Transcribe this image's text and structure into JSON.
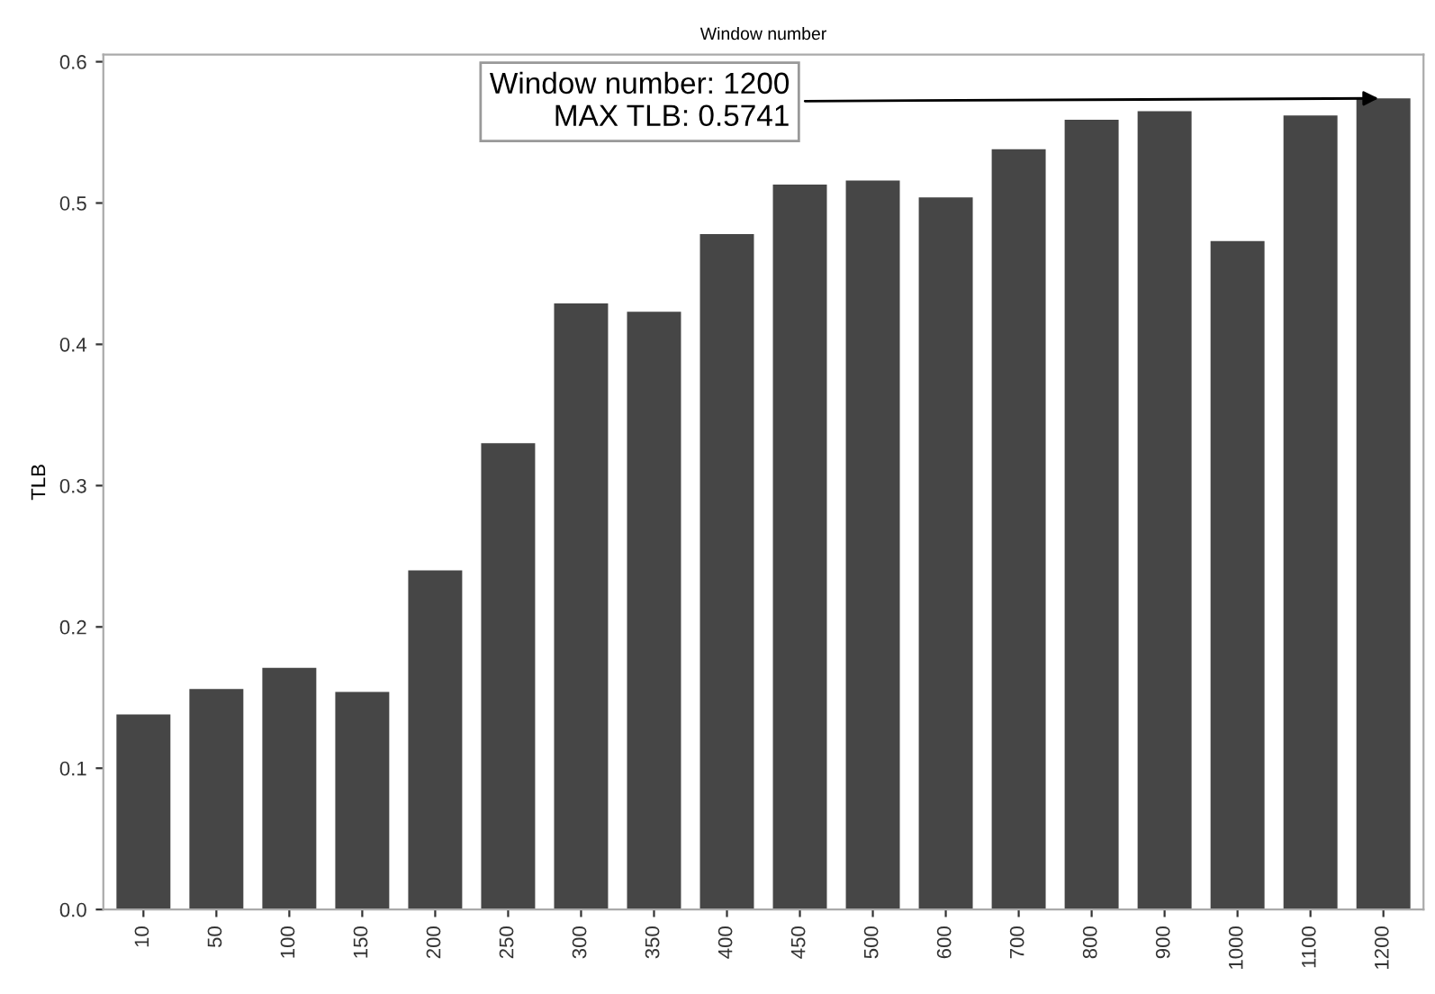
{
  "chart_data": {
    "type": "bar",
    "title": "Window number",
    "ylabel": "TLB",
    "categories": [
      "10",
      "50",
      "100",
      "150",
      "200",
      "250",
      "300",
      "350",
      "400",
      "450",
      "500",
      "600",
      "700",
      "800",
      "900",
      "1000",
      "1100",
      "1200"
    ],
    "values": [
      0.138,
      0.156,
      0.171,
      0.154,
      0.24,
      0.33,
      0.429,
      0.423,
      0.478,
      0.513,
      0.516,
      0.504,
      0.538,
      0.559,
      0.565,
      0.473,
      0.562,
      0.5741
    ],
    "color": "#464646",
    "ylim": [
      0,
      0.605
    ],
    "yticks": [
      {
        "value": 0,
        "label": "0.0"
      },
      {
        "value": 0.1,
        "label": "0.1"
      },
      {
        "value": 0.2,
        "label": "0.2"
      },
      {
        "value": 0.3,
        "label": "0.3"
      },
      {
        "value": 0.4,
        "label": "0.4"
      },
      {
        "value": 0.5,
        "label": "0.5"
      },
      {
        "value": 0.6,
        "label": "0.6"
      }
    ],
    "grid": false,
    "annotations": [
      {
        "text": "Window number: 1200\nMAX TLB: 0.5741",
        "x": "1200",
        "y": 0.5741
      }
    ]
  }
}
